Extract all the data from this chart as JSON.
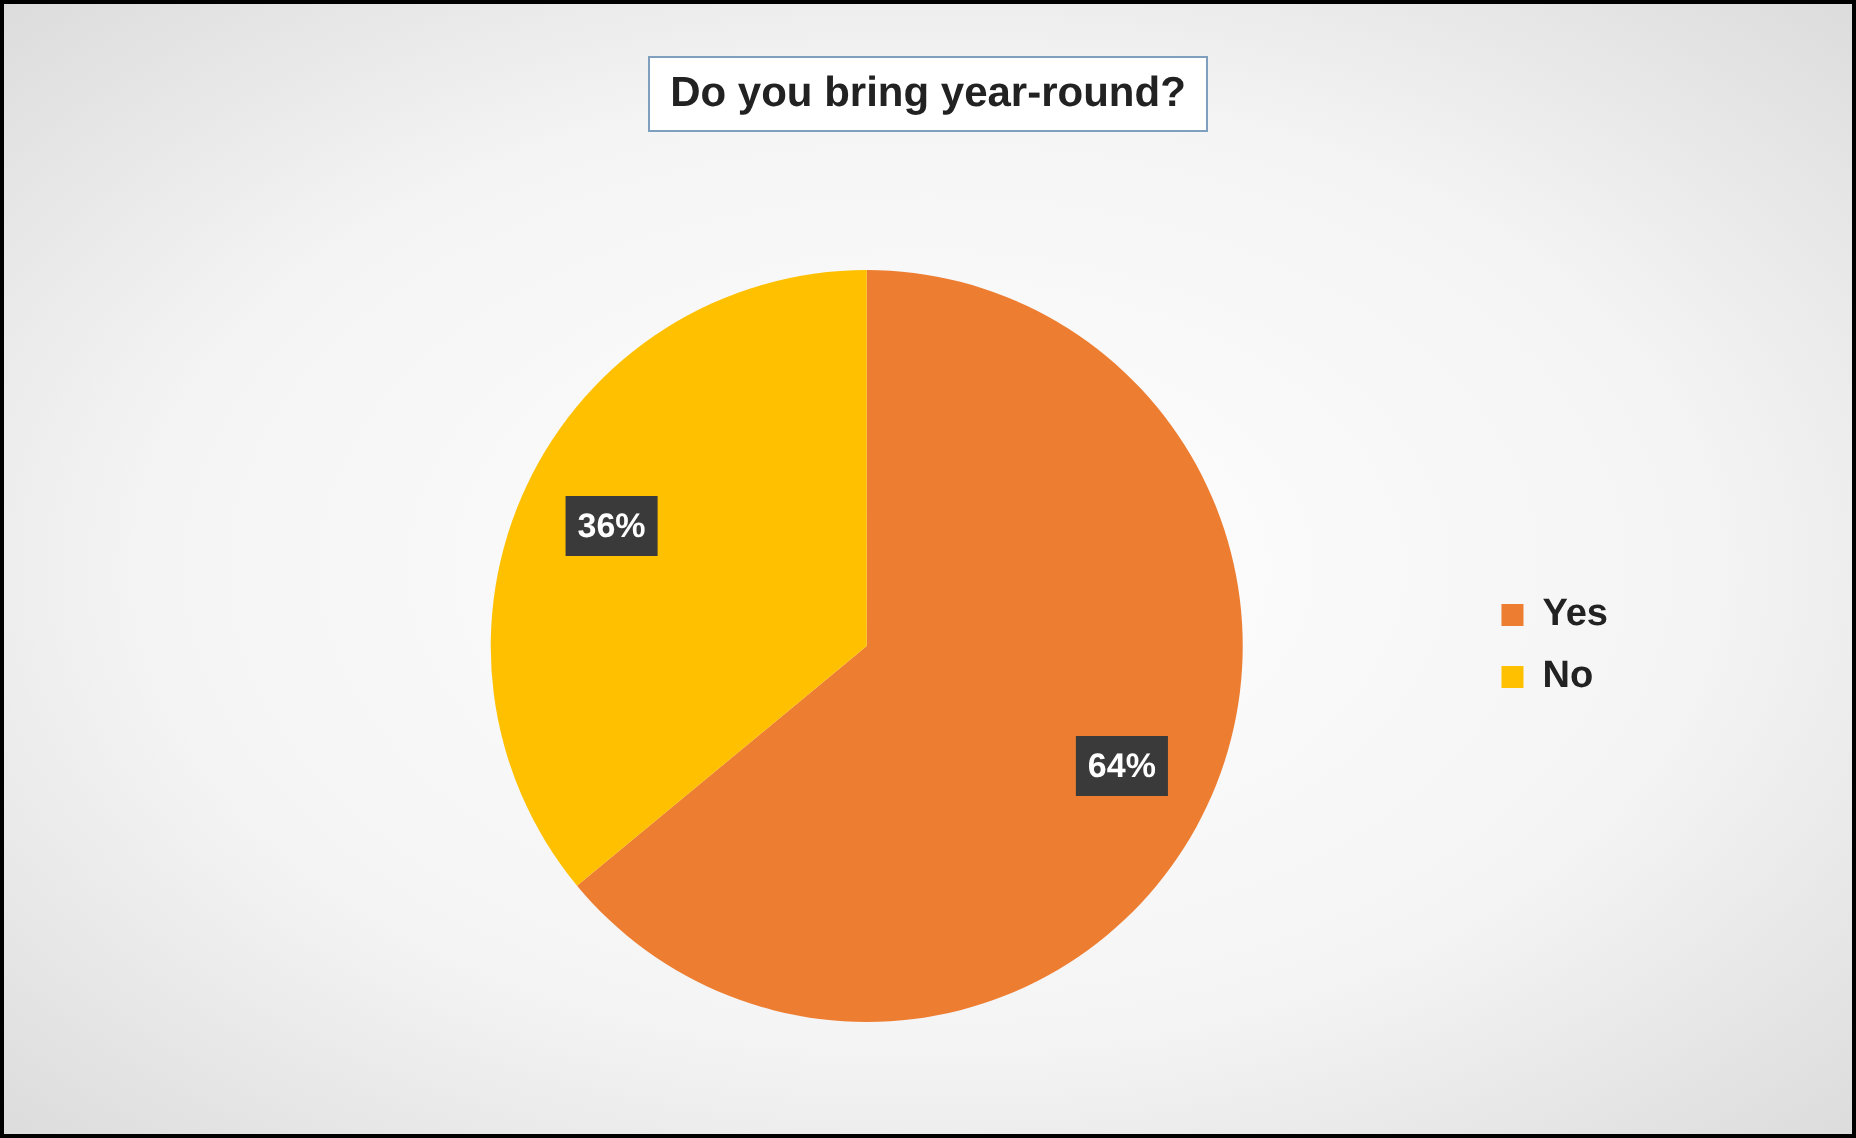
{
  "chart_data": {
    "type": "pie",
    "title": "Do you bring year-round?",
    "categories": [
      "Yes",
      "No"
    ],
    "values": [
      64,
      36
    ],
    "colors": [
      "#ed7d31",
      "#ffc000"
    ],
    "value_labels": [
      "64%",
      "36%"
    ],
    "legend": "right"
  }
}
